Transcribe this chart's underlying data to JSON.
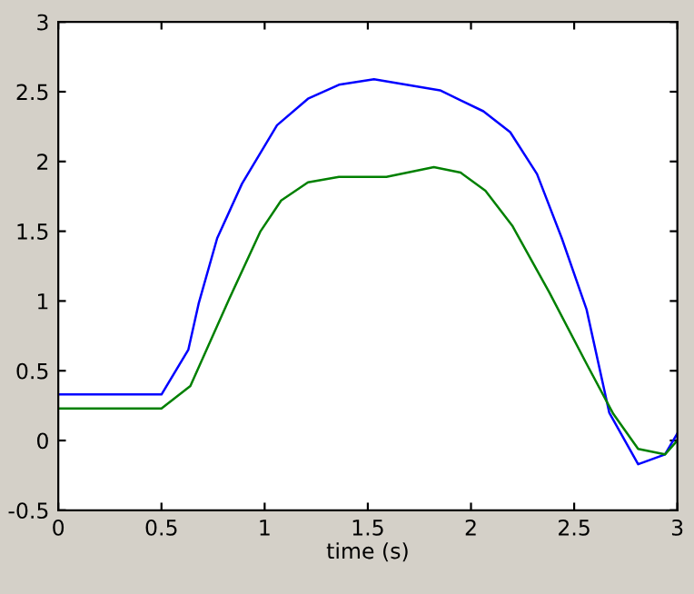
{
  "chart_data": {
    "type": "line",
    "xlabel": "time (s)",
    "xlim": [
      0,
      3
    ],
    "ylim": [
      -0.5,
      3
    ],
    "xticks": [
      0,
      0.5,
      1,
      1.5,
      2,
      2.5,
      3
    ],
    "yticks": [
      -0.5,
      0,
      0.5,
      1,
      1.5,
      2,
      2.5,
      3
    ],
    "grid": false,
    "marker": "none",
    "line_style": "solid",
    "series": [
      {
        "color": "#0000ff",
        "x": [
          0,
          0.5,
          0.63,
          0.68,
          0.77,
          0.89,
          1.06,
          1.21,
          1.36,
          1.53,
          1.85,
          2.06,
          2.19,
          2.32,
          2.44,
          2.56,
          2.67,
          2.81,
          2.94,
          3.0
        ],
        "values": [
          0.33,
          0.33,
          0.65,
          0.98,
          1.45,
          1.84,
          2.26,
          2.45,
          2.55,
          2.59,
          2.51,
          2.36,
          2.21,
          1.91,
          1.45,
          0.94,
          0.2,
          -0.17,
          -0.1,
          0.05
        ]
      },
      {
        "color": "#008000",
        "x": [
          0,
          0.5,
          0.64,
          0.83,
          0.98,
          1.08,
          1.21,
          1.36,
          1.59,
          1.82,
          1.95,
          2.07,
          2.2,
          2.38,
          2.56,
          2.69,
          2.81,
          2.94,
          3.0
        ],
        "values": [
          0.23,
          0.23,
          0.39,
          1.02,
          1.5,
          1.72,
          1.85,
          1.89,
          1.89,
          1.96,
          1.92,
          1.79,
          1.54,
          1.06,
          0.55,
          0.19,
          -0.06,
          -0.1,
          0.0
        ]
      }
    ]
  }
}
